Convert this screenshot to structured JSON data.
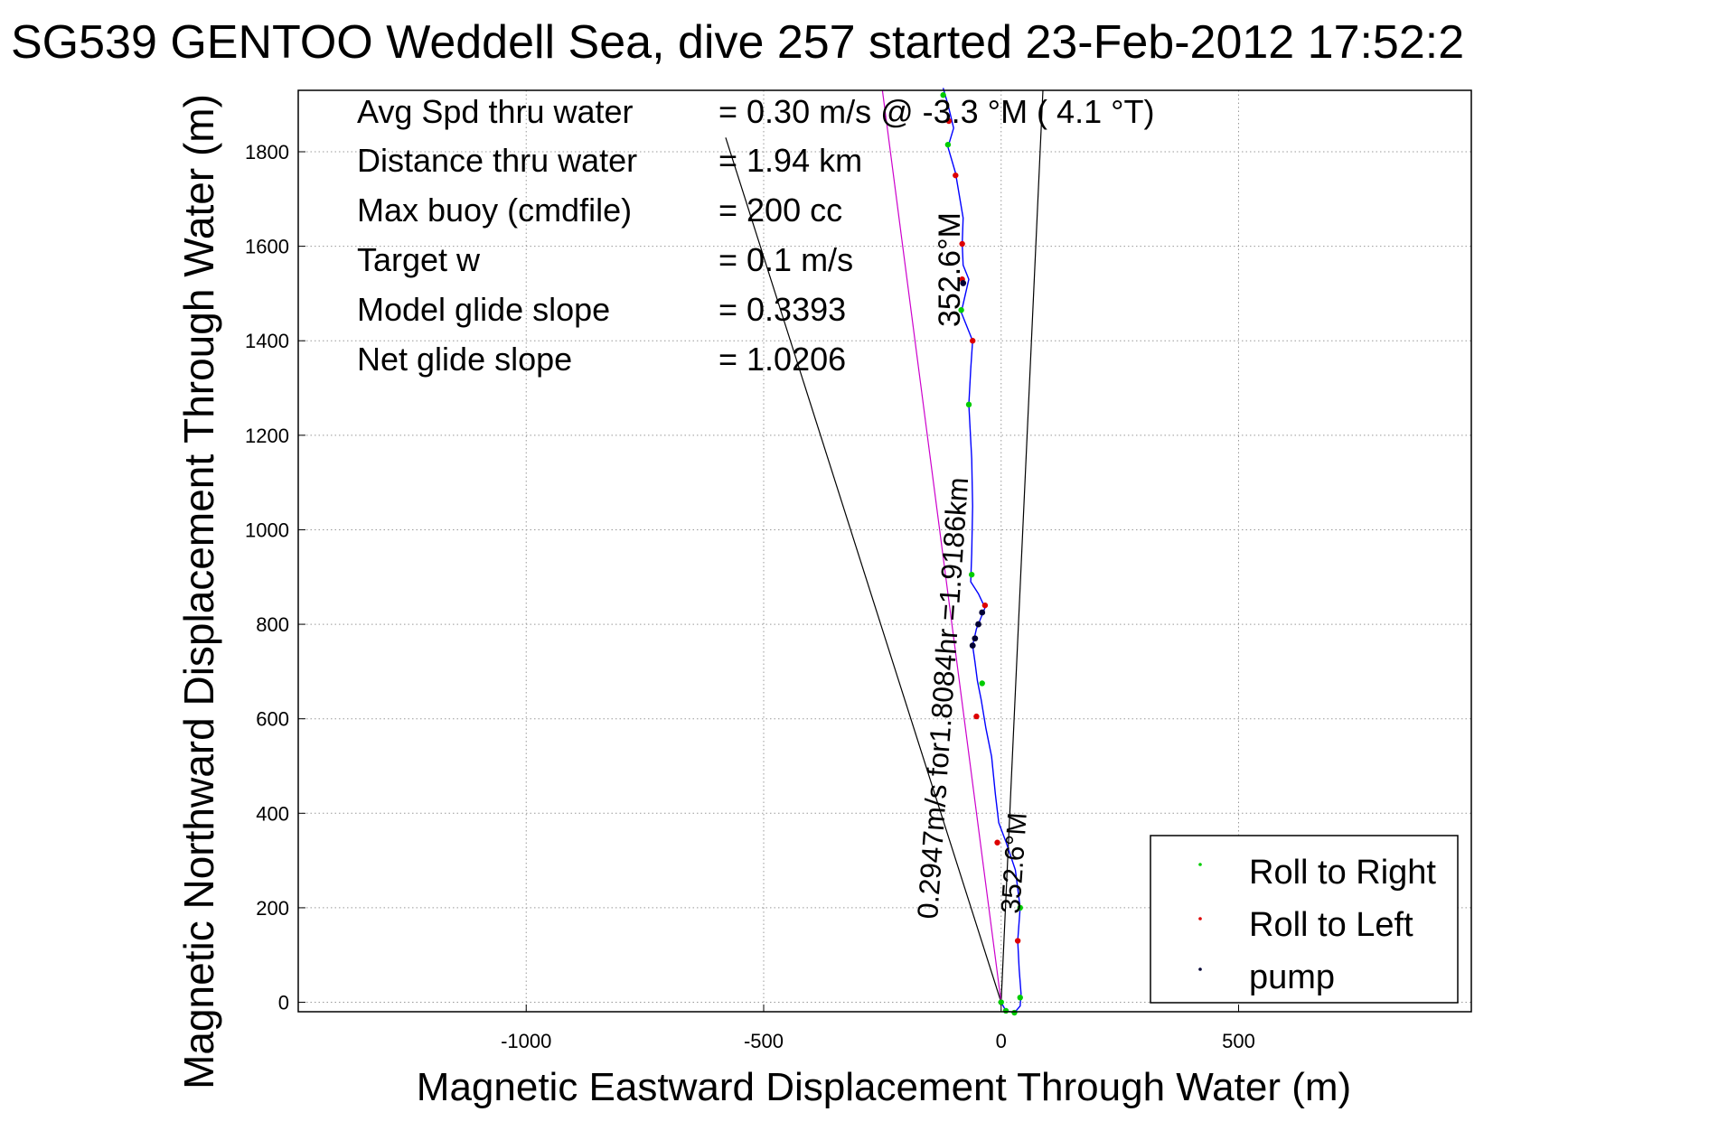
{
  "chart_data": {
    "type": "scatter",
    "title": "SG539 GENTOO Weddell Sea, dive 257 started 23-Feb-2012 17:52:2",
    "xlabel": "Magnetic Eastward Displacement Through Water (m)",
    "ylabel": "Magnetic Northward Displacement Through Water (m)",
    "xlim": [
      -1480,
      990
    ],
    "ylim": [
      -20,
      1930
    ],
    "xticks": [
      -1000,
      -500,
      0,
      500
    ],
    "yticks": [
      0,
      200,
      400,
      600,
      800,
      1000,
      1200,
      1400,
      1600,
      1800
    ],
    "grid": true,
    "info_lines": [
      {
        "label": "Avg Spd thru water",
        "value": "=  0.30 m/s @  -3.3 °M (  4.1 °T)"
      },
      {
        "label": "Distance thru water",
        "value": "=  1.94 km"
      },
      {
        "label": "Max buoy (cmdfile)",
        "value": "= 200 cc"
      },
      {
        "label": "Target w",
        "value": "= 0.1 m/s"
      },
      {
        "label": "Model glide slope",
        "value": "= 0.3393"
      },
      {
        "label": "Net glide slope",
        "value": "= 1.0206"
      }
    ],
    "annotations": {
      "heading_upper": "352.6°M",
      "heading_lower": "352.6°M",
      "along_track": "0.2947m/s for1.8084hr =1.9186km"
    },
    "legend": {
      "placement": "bottom-right",
      "entries": [
        {
          "name": "Roll to Right",
          "color": "#00cc00"
        },
        {
          "name": "Roll to Left",
          "color": "#dd0000"
        },
        {
          "name": "pump",
          "color": "#000033"
        }
      ]
    },
    "track": {
      "color": "#0000ff",
      "points": [
        [
          0,
          0
        ],
        [
          10,
          -18
        ],
        [
          28,
          -22
        ],
        [
          40,
          -8
        ],
        [
          42,
          18
        ],
        [
          38,
          70
        ],
        [
          35,
          130
        ],
        [
          40,
          200
        ],
        [
          30,
          280
        ],
        [
          10,
          340
        ],
        [
          -5,
          380
        ],
        [
          -12,
          440
        ],
        [
          -20,
          520
        ],
        [
          -32,
          580
        ],
        [
          -42,
          640
        ],
        [
          -50,
          680
        ],
        [
          -55,
          720
        ],
        [
          -60,
          755
        ],
        [
          -52,
          790
        ],
        [
          -34,
          835
        ],
        [
          -48,
          865
        ],
        [
          -64,
          890
        ],
        [
          -62,
          950
        ],
        [
          -60,
          1050
        ],
        [
          -62,
          1150
        ],
        [
          -68,
          1265
        ],
        [
          -64,
          1340
        ],
        [
          -60,
          1400
        ],
        [
          -84,
          1460
        ],
        [
          -68,
          1530
        ],
        [
          -80,
          1560
        ],
        [
          -82,
          1605
        ],
        [
          -80,
          1660
        ],
        [
          -96,
          1755
        ],
        [
          -112,
          1810
        ],
        [
          -100,
          1850
        ],
        [
          -112,
          1900
        ],
        [
          -122,
          1935
        ]
      ]
    },
    "roll_right_points": [
      [
        0,
        0
      ],
      [
        10,
        -18
      ],
      [
        28,
        -22
      ],
      [
        40,
        10
      ],
      [
        40,
        200
      ],
      [
        -40,
        675
      ],
      [
        -62,
        905
      ],
      [
        -68,
        1265
      ],
      [
        -84,
        1465
      ],
      [
        -112,
        1815
      ],
      [
        -122,
        1920
      ]
    ],
    "roll_left_points": [
      [
        35,
        130
      ],
      [
        -8,
        338
      ],
      [
        -52,
        605
      ],
      [
        -34,
        840
      ],
      [
        -60,
        1400
      ],
      [
        -82,
        1530
      ],
      [
        -82,
        1605
      ],
      [
        -96,
        1750
      ],
      [
        -110,
        1865
      ]
    ],
    "pump_points": [
      [
        -60,
        755
      ],
      [
        -55,
        770
      ],
      [
        -48,
        800
      ],
      [
        -40,
        825
      ],
      [
        -80,
        1522
      ]
    ],
    "reference_lines": [
      {
        "name": "heading-line-right",
        "color": "#000000",
        "x": [
          0,
          88
        ],
        "y": [
          0,
          1930
        ]
      },
      {
        "name": "heading-line-left",
        "color": "#000000",
        "x": [
          0,
          -580
        ],
        "y": [
          0,
          1830
        ]
      },
      {
        "name": "current-line",
        "color": "#cc00cc",
        "x": [
          0,
          -250
        ],
        "y": [
          0,
          1930
        ]
      }
    ]
  }
}
